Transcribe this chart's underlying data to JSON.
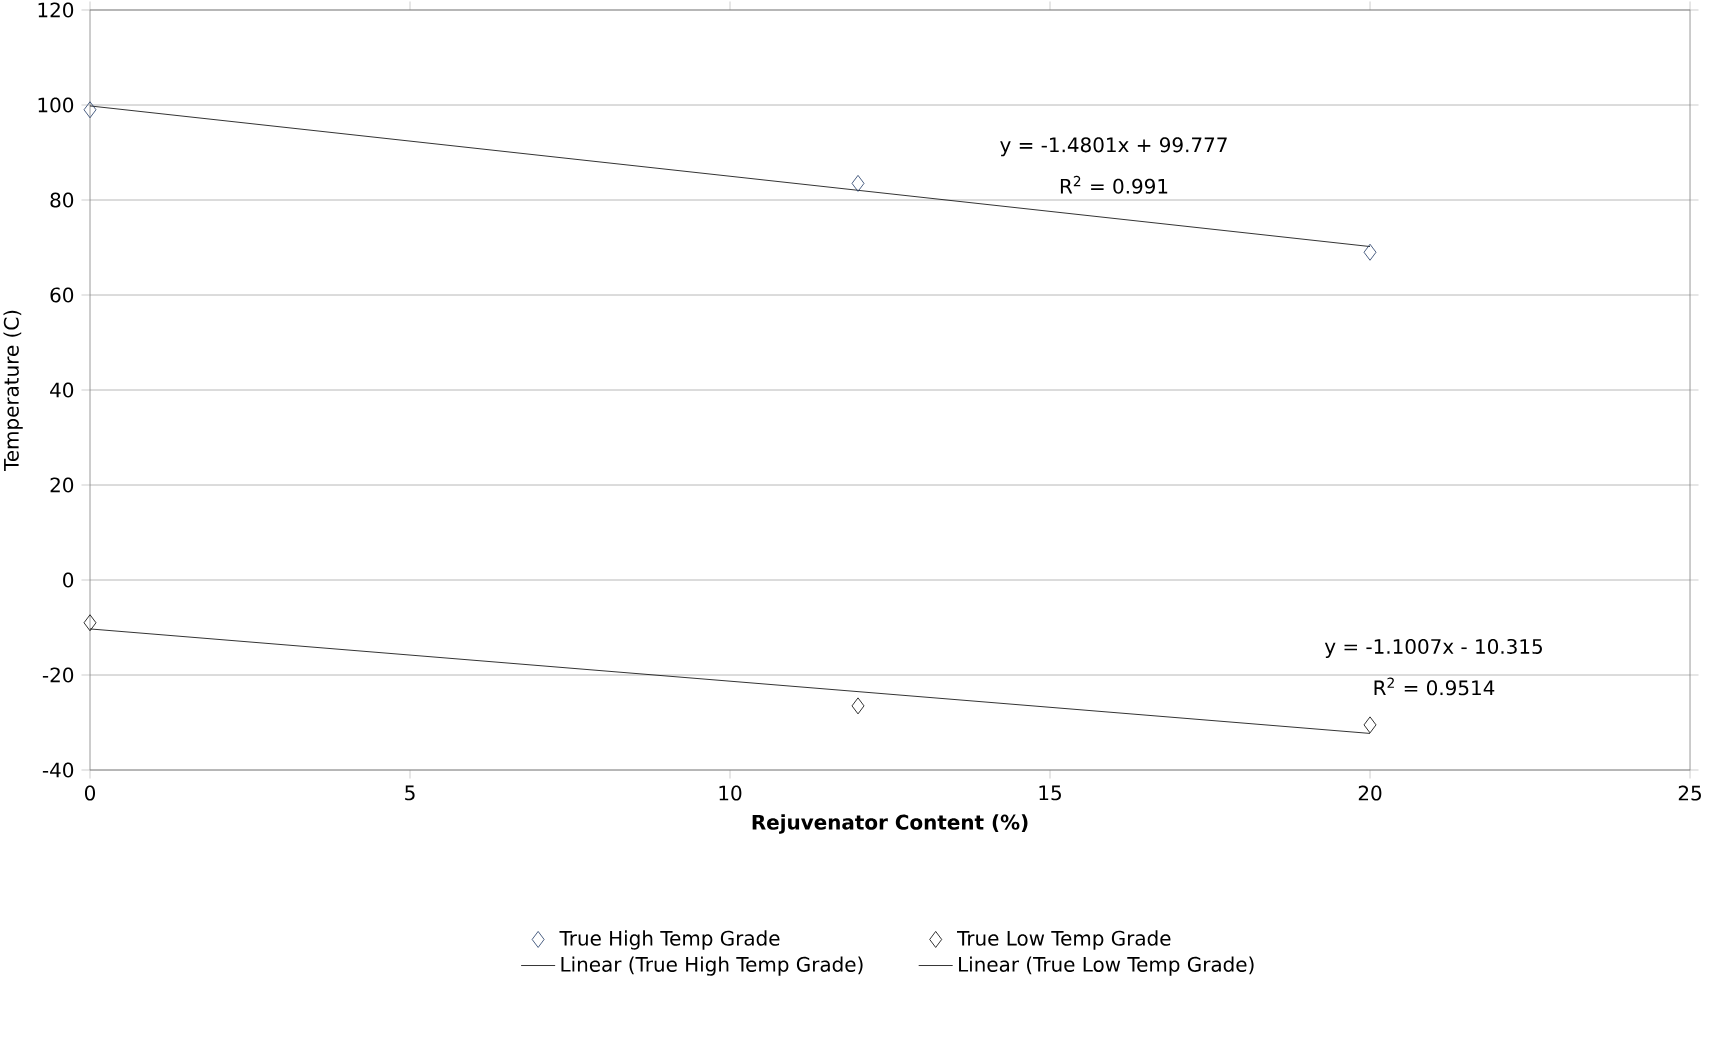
{
  "chart_data": {
    "type": "scatter",
    "xlabel": "Rejuvenator Content (%)",
    "ylabel": "Temperature (C)",
    "xlim": [
      0,
      25
    ],
    "xticks": [
      0,
      5,
      10,
      15,
      20,
      25
    ],
    "ylim": [
      -40,
      120
    ],
    "yticks": [
      -40,
      -20,
      0,
      20,
      40,
      60,
      80,
      100,
      120
    ],
    "grid": "y",
    "legend": "bottom",
    "series": [
      {
        "name": "True High Temp Grade",
        "marker": "diamond",
        "color": "#1f3864",
        "x": [
          0,
          12,
          20
        ],
        "values": [
          99,
          83.5,
          69
        ]
      },
      {
        "name": "True Low Temp Grade",
        "marker": "diamond",
        "color": "#000000",
        "x": [
          0,
          12,
          20
        ],
        "values": [
          -9,
          -26.5,
          -30.5
        ]
      },
      {
        "name": "Linear (True High Temp Grade)",
        "type": "line",
        "marker": "none",
        "color": "#000000",
        "x": [
          0,
          20
        ],
        "values": [
          99.8,
          70.2
        ]
      },
      {
        "name": "Linear (True Low Temp Grade)",
        "type": "line",
        "marker": "none",
        "color": "#000000",
        "x": [
          0,
          20
        ],
        "values": [
          -10.3,
          -32.3
        ]
      }
    ],
    "annotations": [
      "y = -1.4801x + 99.777",
      "R$^{2}$ = 0.991",
      "y = -1.1007x - 10.315",
      "R$^{2}$ = 0.9514"
    ]
  }
}
